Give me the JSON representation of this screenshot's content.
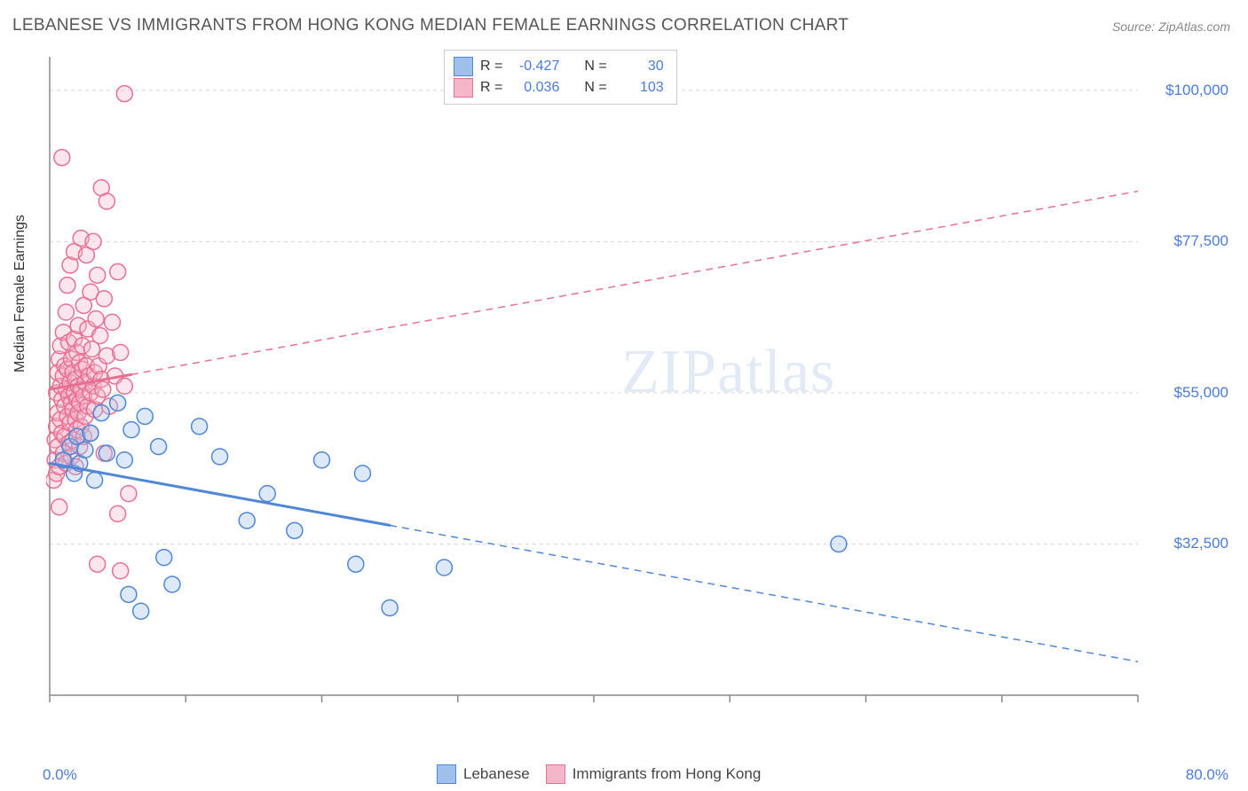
{
  "title": "LEBANESE VS IMMIGRANTS FROM HONG KONG MEDIAN FEMALE EARNINGS CORRELATION CHART",
  "source_label": "Source: ZipAtlas.com",
  "watermark": "ZIPatlas",
  "ylabel": "Median Female Earnings",
  "chart": {
    "type": "scatter",
    "background_color": "#ffffff",
    "grid_color": "#d8d8d8",
    "grid_dash": "4 4",
    "axis_color": "#888888",
    "axis_label_color": "#4a7bd8",
    "axis_label_fontsize": 17,
    "title_color": "#555555",
    "title_fontsize": 19,
    "xlim": [
      0,
      80
    ],
    "ylim": [
      10000,
      105000
    ],
    "xtick_label_start": "0.0%",
    "xtick_label_end": "80.0%",
    "xtick_positions": [
      0,
      10,
      20,
      30,
      40,
      50,
      60,
      70,
      80
    ],
    "ytick_positions": [
      32500,
      55000,
      77500,
      100000
    ],
    "ytick_labels": [
      "$32,500",
      "$55,000",
      "$77,500",
      "$100,000"
    ],
    "marker_radius": 9,
    "marker_stroke_width": 1.5,
    "marker_fill_opacity": 0.35,
    "trend_solid_width": 3,
    "trend_dashed_width": 1.5,
    "trend_dash": "8 6"
  },
  "series": [
    {
      "key": "lebanese",
      "label": "Lebanese",
      "color_stroke": "#4f87d6",
      "color_fill": "#9fc0ea",
      "R": "-0.427",
      "N": "30",
      "trend": {
        "x1": 0,
        "y1": 44500,
        "x2": 80,
        "y2": 15000,
        "solid_until_x": 25
      },
      "points": [
        [
          1.0,
          45000
        ],
        [
          1.5,
          47000
        ],
        [
          1.8,
          43000
        ],
        [
          2.0,
          48500
        ],
        [
          2.2,
          44500
        ],
        [
          2.6,
          46500
        ],
        [
          3.0,
          49000
        ],
        [
          3.3,
          42000
        ],
        [
          3.8,
          52000
        ],
        [
          4.2,
          46000
        ],
        [
          5.0,
          53500
        ],
        [
          5.5,
          45000
        ],
        [
          5.8,
          25000
        ],
        [
          6.0,
          49500
        ],
        [
          6.7,
          22500
        ],
        [
          7.0,
          51500
        ],
        [
          8.0,
          47000
        ],
        [
          8.4,
          30500
        ],
        [
          9.0,
          26500
        ],
        [
          11.0,
          50000
        ],
        [
          12.5,
          45500
        ],
        [
          14.5,
          36000
        ],
        [
          16.0,
          40000
        ],
        [
          18.0,
          34500
        ],
        [
          20.0,
          45000
        ],
        [
          22.5,
          29500
        ],
        [
          23.0,
          43000
        ],
        [
          25.0,
          23000
        ],
        [
          29.0,
          29000
        ],
        [
          58.0,
          32500
        ]
      ]
    },
    {
      "key": "hongkong",
      "label": "Immigrants from Hong Kong",
      "color_stroke": "#e86f94",
      "color_fill": "#f4b7ca",
      "R": "0.036",
      "N": "103",
      "trend": {
        "x1": 0,
        "y1": 55500,
        "x2": 80,
        "y2": 85000,
        "solid_until_x": 6
      },
      "points": [
        [
          0.3,
          42000
        ],
        [
          0.4,
          45000
        ],
        [
          0.4,
          48000
        ],
        [
          0.5,
          50000
        ],
        [
          0.5,
          55000
        ],
        [
          0.5,
          43000
        ],
        [
          0.6,
          58000
        ],
        [
          0.6,
          47000
        ],
        [
          0.6,
          52000
        ],
        [
          0.7,
          60000
        ],
        [
          0.7,
          44000
        ],
        [
          0.7,
          38000
        ],
        [
          0.8,
          56000
        ],
        [
          0.8,
          51000
        ],
        [
          0.8,
          62000
        ],
        [
          0.9,
          49000
        ],
        [
          0.9,
          54000
        ],
        [
          0.9,
          90000
        ],
        [
          1.0,
          57500
        ],
        [
          1.0,
          46000
        ],
        [
          1.0,
          64000
        ],
        [
          1.1,
          53000
        ],
        [
          1.1,
          48500
        ],
        [
          1.1,
          59000
        ],
        [
          1.2,
          55500
        ],
        [
          1.2,
          67000
        ],
        [
          1.2,
          44500
        ],
        [
          1.3,
          51500
        ],
        [
          1.3,
          58500
        ],
        [
          1.3,
          71000
        ],
        [
          1.4,
          54500
        ],
        [
          1.4,
          47500
        ],
        [
          1.4,
          62500
        ],
        [
          1.5,
          56500
        ],
        [
          1.5,
          50500
        ],
        [
          1.5,
          74000
        ],
        [
          1.6,
          53500
        ],
        [
          1.6,
          60000
        ],
        [
          1.6,
          45500
        ],
        [
          1.7,
          52500
        ],
        [
          1.7,
          58000
        ],
        [
          1.7,
          48000
        ],
        [
          1.8,
          55000
        ],
        [
          1.8,
          63000
        ],
        [
          1.8,
          76000
        ],
        [
          1.9,
          51000
        ],
        [
          1.9,
          57000
        ],
        [
          1.9,
          44000
        ],
        [
          2.0,
          54000
        ],
        [
          2.0,
          61000
        ],
        [
          2.0,
          49500
        ],
        [
          2.1,
          56000
        ],
        [
          2.1,
          65000
        ],
        [
          2.1,
          52000
        ],
        [
          2.2,
          59500
        ],
        [
          2.2,
          47000
        ],
        [
          2.2,
          53500
        ],
        [
          2.3,
          55500
        ],
        [
          2.3,
          78000
        ],
        [
          2.3,
          50000
        ],
        [
          2.4,
          58500
        ],
        [
          2.4,
          62000
        ],
        [
          2.5,
          54500
        ],
        [
          2.5,
          48500
        ],
        [
          2.5,
          68000
        ],
        [
          2.6,
          56500
        ],
        [
          2.6,
          51500
        ],
        [
          2.7,
          59000
        ],
        [
          2.7,
          75500
        ],
        [
          2.8,
          53000
        ],
        [
          2.8,
          64500
        ],
        [
          2.9,
          57500
        ],
        [
          3.0,
          55000
        ],
        [
          3.0,
          70000
        ],
        [
          3.0,
          49000
        ],
        [
          3.1,
          61500
        ],
        [
          3.2,
          56000
        ],
        [
          3.2,
          77500
        ],
        [
          3.3,
          58000
        ],
        [
          3.3,
          52500
        ],
        [
          3.4,
          66000
        ],
        [
          3.5,
          54500
        ],
        [
          3.5,
          72500
        ],
        [
          3.6,
          59000
        ],
        [
          3.7,
          63500
        ],
        [
          3.8,
          57000
        ],
        [
          3.8,
          85500
        ],
        [
          3.9,
          55500
        ],
        [
          4.0,
          69000
        ],
        [
          4.0,
          46000
        ],
        [
          4.2,
          60500
        ],
        [
          4.4,
          53000
        ],
        [
          4.6,
          65500
        ],
        [
          4.8,
          57500
        ],
        [
          5.0,
          73000
        ],
        [
          5.0,
          37000
        ],
        [
          5.2,
          61000
        ],
        [
          5.5,
          56000
        ],
        [
          5.8,
          40000
        ],
        [
          5.5,
          99500
        ],
        [
          3.5,
          29500
        ],
        [
          4.2,
          83500
        ],
        [
          5.2,
          28500
        ]
      ]
    }
  ],
  "legend_top": {
    "R_label": "R =",
    "N_label": "N ="
  },
  "legend_bottom_order": [
    "lebanese",
    "hongkong"
  ]
}
